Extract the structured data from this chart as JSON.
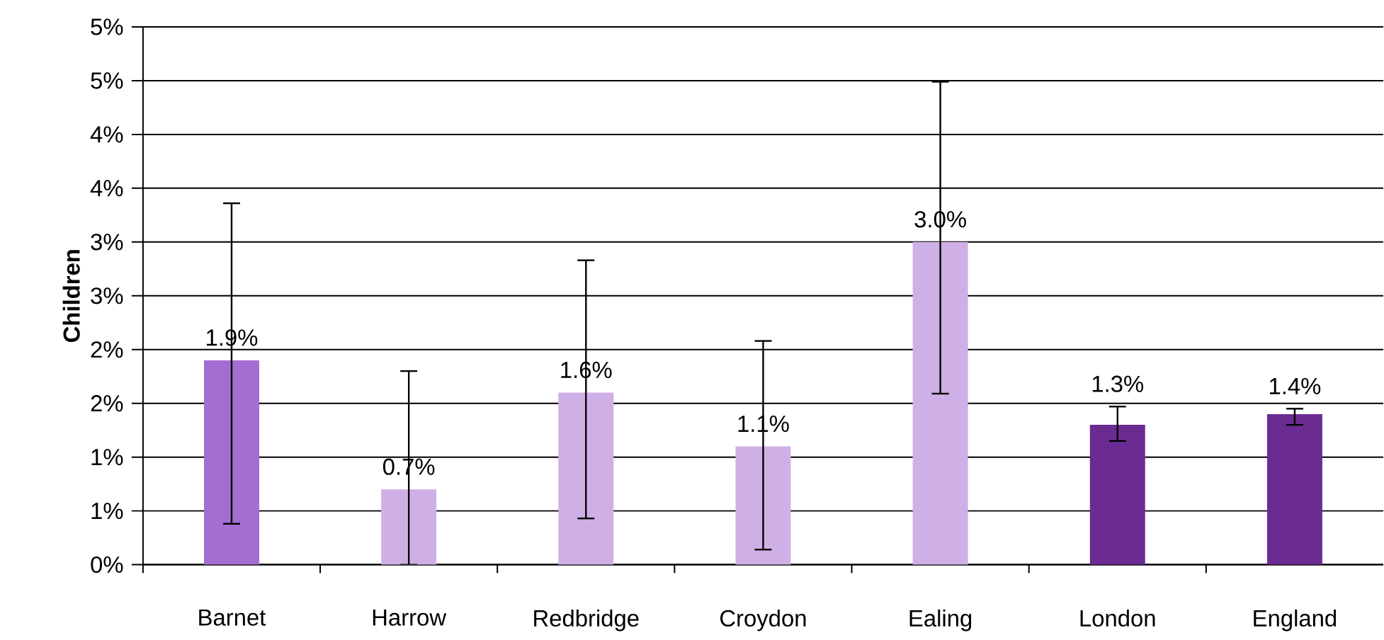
{
  "chart_data": {
    "type": "bar",
    "ylabel": "Children",
    "categories": [
      "Barnet",
      "Harrow",
      "Redbridge",
      "Croydon",
      "Ealing",
      "London",
      "England"
    ],
    "values": [
      1.9,
      0.7,
      1.6,
      1.1,
      3.0,
      1.3,
      1.4
    ],
    "colors": [
      "#a36dd1",
      "#cfb0e6",
      "#cfb0e6",
      "#cfb0e6",
      "#cfb0e6",
      "#6a2c91",
      "#6a2c91"
    ],
    "value_labels": [
      "1.9%",
      "0.7%",
      "1.6%",
      "1.1%",
      "3.0%",
      "1.3%",
      "1.4%"
    ],
    "errors": [
      [
        0.38,
        3.36
      ],
      [
        0.0,
        1.8
      ],
      [
        0.43,
        2.83
      ],
      [
        0.14,
        2.08
      ],
      [
        1.59,
        4.49
      ],
      [
        1.15,
        1.47
      ],
      [
        1.3,
        1.45
      ]
    ],
    "ylim": [
      0,
      5
    ],
    "yticks": [
      {
        "value": 0,
        "label": "0%"
      },
      {
        "value": 0.5,
        "label": "1%"
      },
      {
        "value": 1,
        "label": "1%"
      },
      {
        "value": 1.5,
        "label": "2%"
      },
      {
        "value": 2,
        "label": "2%"
      },
      {
        "value": 2.5,
        "label": "3%"
      },
      {
        "value": 3,
        "label": "3%"
      },
      {
        "value": 3.5,
        "label": "4%"
      },
      {
        "value": 4,
        "label": "4%"
      },
      {
        "value": 4.5,
        "label": "5%"
      },
      {
        "value": 5,
        "label": "5%"
      }
    ],
    "grid": "y"
  }
}
